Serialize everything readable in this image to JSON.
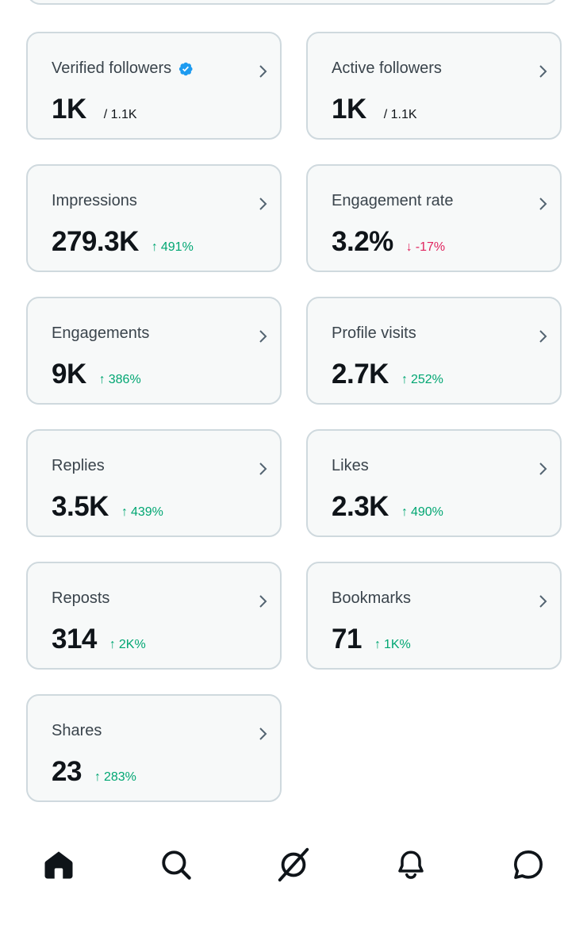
{
  "cards": [
    {
      "label": "Verified followers",
      "verified": true,
      "value": "1K",
      "sub": "/ 1.1K",
      "change": "",
      "direction": ""
    },
    {
      "label": "Active followers",
      "verified": false,
      "value": "1K",
      "sub": "/ 1.1K",
      "change": "",
      "direction": ""
    },
    {
      "label": "Impressions",
      "verified": false,
      "value": "279.3K",
      "sub": "",
      "change": "491%",
      "direction": "up"
    },
    {
      "label": "Engagement rate",
      "verified": false,
      "value": "3.2%",
      "sub": "",
      "change": "-17%",
      "direction": "down"
    },
    {
      "label": "Engagements",
      "verified": false,
      "value": "9K",
      "sub": "",
      "change": "386%",
      "direction": "up"
    },
    {
      "label": "Profile visits",
      "verified": false,
      "value": "2.7K",
      "sub": "",
      "change": "252%",
      "direction": "up"
    },
    {
      "label": "Replies",
      "verified": false,
      "value": "3.5K",
      "sub": "",
      "change": "439%",
      "direction": "up"
    },
    {
      "label": "Likes",
      "verified": false,
      "value": "2.3K",
      "sub": "",
      "change": "490%",
      "direction": "up"
    },
    {
      "label": "Reposts",
      "verified": false,
      "value": "314",
      "sub": "",
      "change": "2K%",
      "direction": "up"
    },
    {
      "label": "Bookmarks",
      "verified": false,
      "value": "71",
      "sub": "",
      "change": "1K%",
      "direction": "up"
    },
    {
      "label": "Shares",
      "verified": false,
      "value": "23",
      "sub": "",
      "change": "283%",
      "direction": "up"
    }
  ],
  "icons": {
    "verified": "verified-badge-icon",
    "chevron": "chevron-right-icon",
    "up": "arrow-up-icon",
    "down": "arrow-down-icon"
  },
  "colors": {
    "up": "#00a672",
    "down": "#e0245e",
    "verified": "#1d9bf0",
    "card_bg": "#f7f9f9",
    "card_border": "#cfd9de"
  },
  "bottom_nav": [
    {
      "name": "home",
      "icon": "home-icon",
      "active": true
    },
    {
      "name": "search",
      "icon": "search-icon",
      "active": false
    },
    {
      "name": "grok",
      "icon": "grok-icon",
      "active": false
    },
    {
      "name": "notifications",
      "icon": "bell-icon",
      "active": false
    },
    {
      "name": "messages",
      "icon": "message-icon",
      "active": false
    }
  ]
}
